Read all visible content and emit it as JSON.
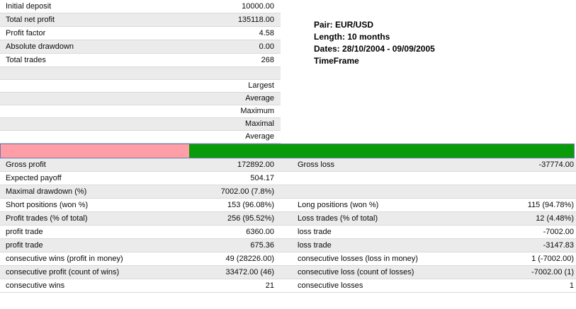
{
  "top_table": {
    "rows": [
      {
        "label": "Initial deposit",
        "value": "10000.00"
      },
      {
        "label": "Total net profit",
        "value": "135118.00"
      },
      {
        "label": "Profit factor",
        "value": "4.58"
      },
      {
        "label": "Absolute drawdown",
        "value": "0.00"
      },
      {
        "label": "Total trades",
        "value": "268"
      }
    ]
  },
  "info_block": {
    "lines": [
      "Pair: EUR/USD",
      "Length: 10 months",
      "Dates: 28/10/2004 - 09/09/2005",
      "TimeFrame"
    ]
  },
  "mid_table": {
    "rows": [
      "",
      "Largest",
      "Average",
      "Maximum",
      "Maximal",
      "Average"
    ]
  },
  "bar": {
    "pink_pct": 32.9,
    "pink_color": "#ff9ea6",
    "green_color": "#0a9b0a",
    "border_color": "#6b79ad"
  },
  "bottom_table": {
    "rows": [
      {
        "l1": "Gross profit",
        "v1": "172892.00",
        "l2": "Gross loss",
        "v2": "-37774.00"
      },
      {
        "l1": "Expected payoff",
        "v1": "504.17",
        "l2": "",
        "v2": ""
      },
      {
        "l1": "Maximal drawdown (%)",
        "v1": "7002.00 (7.8%)",
        "l2": "",
        "v2": ""
      },
      {
        "l1": "Short positions (won %)",
        "v1": "153 (96.08%)",
        "l2": "Long positions (won %)",
        "v2": "115 (94.78%)"
      },
      {
        "l1": "Profit trades (% of total)",
        "v1": "256 (95.52%)",
        "l2": "Loss trades (% of total)",
        "v2": "12 (4.48%)"
      },
      {
        "l1": "profit trade",
        "v1": "6360.00",
        "l2": "loss trade",
        "v2": "-7002.00"
      },
      {
        "l1": "profit trade",
        "v1": "675.36",
        "l2": "loss trade",
        "v2": "-3147.83"
      },
      {
        "l1": "consecutive wins (profit in money)",
        "v1": "49 (28226.00)",
        "l2": "consecutive losses (loss in money)",
        "v2": "1 (-7002.00)"
      },
      {
        "l1": "consecutive profit (count of wins)",
        "v1": "33472.00 (46)",
        "l2": "consecutive loss (count of losses)",
        "v2": "-7002.00 (1)"
      },
      {
        "l1": "consecutive wins",
        "v1": "21",
        "l2": "consecutive losses",
        "v2": "1"
      }
    ]
  }
}
